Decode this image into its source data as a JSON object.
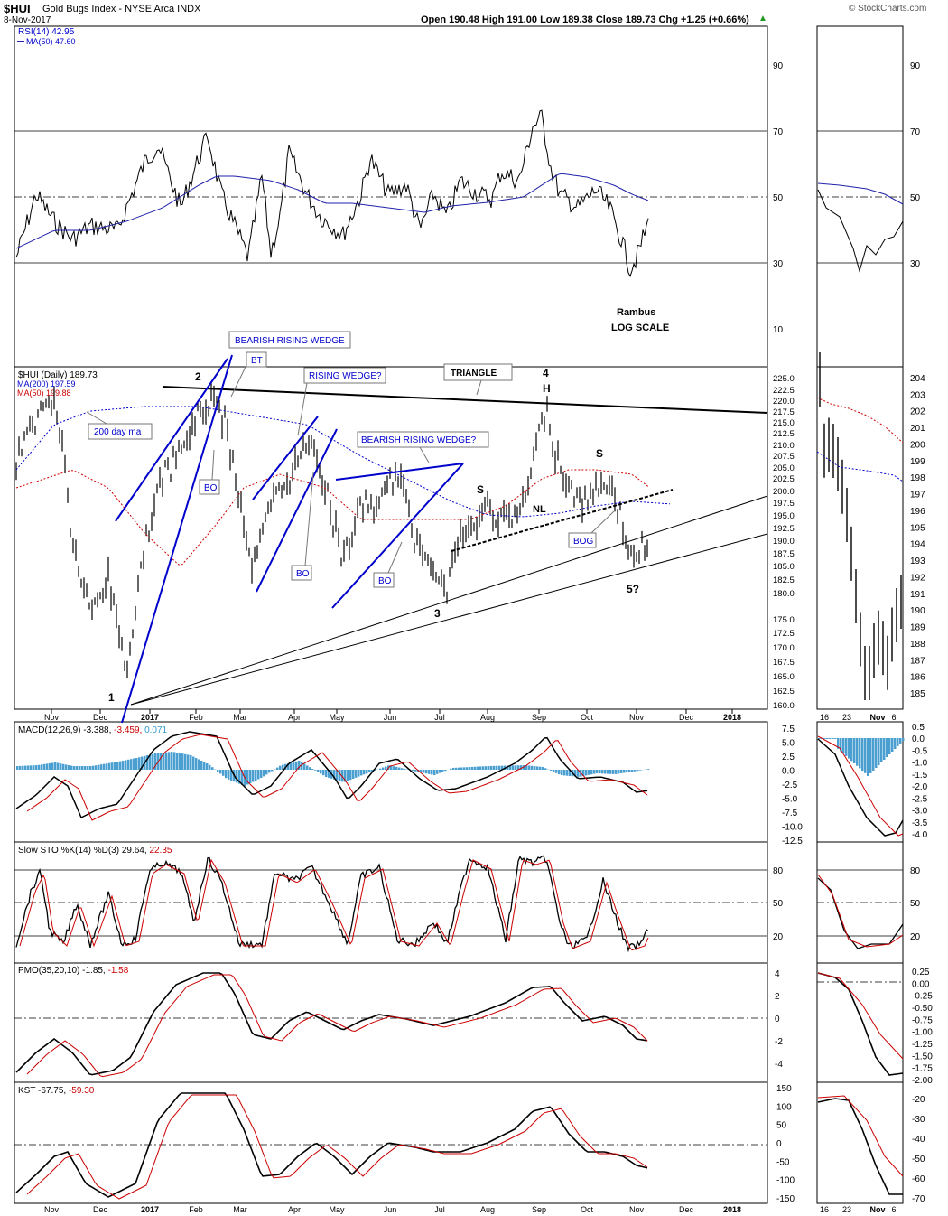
{
  "header": {
    "symbol": "$HUI",
    "name": "Gold Bugs Index - NYSE Arca INDX",
    "date": "8-Nov-2017",
    "quote": "Open 190.48  High 191.00  Low 189.38  Close 189.73  Chg +1.25 (+0.66%)",
    "up_arrow": "▲",
    "watermark": "© StockCharts.com"
  },
  "rsi": {
    "label": "RSI(14) 42.95",
    "ma_label": "MA(50) 47.60",
    "ticks": [
      "90",
      "70",
      "50",
      "30",
      "10"
    ],
    "right_ticks": [
      "90",
      "70",
      "50",
      "30"
    ]
  },
  "price": {
    "label": "$HUI (Daily) 189.73",
    "ma200_label": "MA(200) 197.59",
    "ma50_label": "MA(50) 199.88",
    "ticks": [
      "225.0",
      "222.5",
      "220.0",
      "217.5",
      "215.0",
      "212.5",
      "210.0",
      "207.5",
      "205.0",
      "202.5",
      "200.0",
      "197.5",
      "195.0",
      "192.5",
      "190.0",
      "187.5",
      "185.0",
      "182.5",
      "180.0",
      "175.0",
      "172.5",
      "170.0",
      "167.5",
      "165.0",
      "162.5",
      "160.0"
    ],
    "right_ticks": [
      "204",
      "203",
      "202",
      "201",
      "200",
      "199",
      "198",
      "197",
      "196",
      "195",
      "194",
      "193",
      "192",
      "191",
      "190",
      "189",
      "188",
      "187",
      "186",
      "185"
    ]
  },
  "annotations": {
    "n1": "1",
    "n2": "2",
    "n3": "3",
    "n4": "4",
    "n5": "5?",
    "H": "H",
    "S1": "S",
    "S2": "S",
    "NL": "NL",
    "bearish_rising_wedge": "BEARISH RISING WEDGE",
    "bt": "BT",
    "bo1": "BO",
    "bo2": "BO",
    "bo3": "BO",
    "rising_wedge": "RISING WEDGE?",
    "triangle": "TRIANGLE",
    "bearish_rising_wedge2": "BEARISH RISING WEDGE?",
    "ma200_callout": "200 day ma",
    "bog": "BOG",
    "rambus": "Rambus",
    "log_scale": "LOG SCALE"
  },
  "macd": {
    "label1": "MACD(12,26,9) -3.388, ",
    "label2": "-3.459, ",
    "label3": "0.071",
    "ticks": [
      "7.5",
      "5.0",
      "2.5",
      "0.0",
      "-2.5",
      "-5.0",
      "-7.5",
      "-10.0",
      "-12.5"
    ],
    "right_ticks": [
      "0.5",
      "0.0",
      "-0.5",
      "-1.0",
      "-1.5",
      "-2.0",
      "-2.5",
      "-3.0",
      "-3.5",
      "-4.0"
    ]
  },
  "sto": {
    "label1": "Slow STO %K(14) %D(3) 29.64, ",
    "label2": "22.35",
    "ticks": [
      "80",
      "50",
      "20"
    ],
    "right_ticks": [
      "80",
      "50",
      "20"
    ]
  },
  "pmo": {
    "label1": "PMO(35,20,10) -1.85, ",
    "label2": "-1.58",
    "ticks": [
      "4",
      "2",
      "0",
      "-2",
      "-4"
    ],
    "right_ticks": [
      "0.25",
      "0.00",
      "-0.25",
      "-0.50",
      "-0.75",
      "-1.00",
      "-1.25",
      "-1.50",
      "-1.75",
      "-2.00"
    ]
  },
  "kst": {
    "label1": "KST -67.75, ",
    "label2": "-59.30",
    "ticks": [
      "150",
      "100",
      "50",
      "0",
      "-50",
      "-100",
      "-150"
    ],
    "right_ticks": [
      "-20",
      "-30",
      "-40",
      "-50",
      "-60",
      "-70"
    ]
  },
  "x_axis": [
    "Nov",
    "Dec",
    "2017",
    "Feb",
    "Mar",
    "Apr",
    "May",
    "Jun",
    "Jul",
    "Aug",
    "Sep",
    "Oct",
    "Nov",
    "Dec",
    "2018"
  ],
  "x_axis_right": [
    "16",
    "23",
    "Nov",
    "6"
  ],
  "colors": {
    "blue": "#0000cc",
    "red": "#cc0000",
    "hist": "#4a9fd0",
    "ma_blue": "#2222aa",
    "axis": "#000000"
  },
  "chart_data": [
    {
      "type": "line",
      "title": "RSI(14)",
      "series": [
        {
          "name": "RSI(14)",
          "last": 42.95
        },
        {
          "name": "MA(50)",
          "last": 47.6
        }
      ],
      "ylim": [
        0,
        100
      ],
      "reference_lines": [
        30,
        50,
        70
      ]
    },
    {
      "type": "candlestick",
      "title": "$HUI (Daily)",
      "scale": "log",
      "series": [
        {
          "name": "$HUI",
          "last": 189.73
        },
        {
          "name": "MA(200)",
          "last": 197.59
        },
        {
          "name": "MA(50)",
          "last": 199.88
        }
      ],
      "ylim": [
        160,
        225
      ],
      "x": [
        "Nov",
        "Dec",
        "2017",
        "Feb",
        "Mar",
        "Apr",
        "May",
        "Jun",
        "Jul",
        "Aug",
        "Sep",
        "Oct",
        "Nov",
        "Dec",
        "2018"
      ]
    },
    {
      "type": "line",
      "title": "MACD(12,26,9)",
      "series": [
        {
          "name": "MACD",
          "last": -3.388
        },
        {
          "name": "Signal",
          "last": -3.459
        },
        {
          "name": "Histogram",
          "last": 0.071
        }
      ],
      "ylim": [
        -12.5,
        7.5
      ]
    },
    {
      "type": "line",
      "title": "Slow STO %K(14) %D(3)",
      "series": [
        {
          "name": "%K",
          "last": 29.64
        },
        {
          "name": "%D",
          "last": 22.35
        }
      ],
      "ylim": [
        0,
        100
      ]
    },
    {
      "type": "line",
      "title": "PMO(35,20,10)",
      "series": [
        {
          "name": "PMO",
          "last": -1.85
        },
        {
          "name": "Signal",
          "last": -1.58
        }
      ],
      "ylim": [
        -5,
        5
      ]
    },
    {
      "type": "line",
      "title": "KST",
      "series": [
        {
          "name": "KST",
          "last": -67.75
        },
        {
          "name": "Signal",
          "last": -59.3
        }
      ],
      "ylim": [
        -150,
        150
      ]
    }
  ]
}
